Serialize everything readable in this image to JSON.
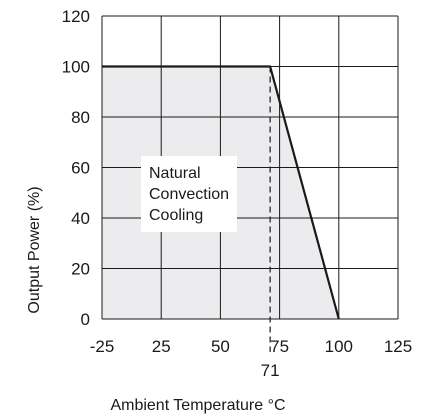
{
  "chart_data": {
    "type": "area",
    "title": "",
    "xlabel": "Ambient Temperature °C",
    "ylabel": "Output Power (%)",
    "xlim": [
      -25,
      125
    ],
    "ylim": [
      0,
      120
    ],
    "x_ticks": [
      -25,
      25,
      50,
      75,
      100,
      125
    ],
    "x_tick_labels": [
      "-25",
      "25",
      "50",
      "75",
      "100",
      "125"
    ],
    "y_ticks": [
      0,
      20,
      40,
      60,
      80,
      100,
      120
    ],
    "y_tick_labels": [
      "0",
      "20",
      "40",
      "60",
      "80",
      "100",
      "120"
    ],
    "grid": true,
    "series": [
      {
        "name": "Natural Convection Cooling",
        "x": [
          -25,
          71,
          100
        ],
        "y": [
          100,
          100,
          0
        ],
        "fill": "#ececee",
        "line_color": "#1a1a1a"
      }
    ],
    "annotations": [
      {
        "text": "71",
        "x": 71,
        "style": "dashed-vertical"
      }
    ],
    "region_label": [
      "Natural",
      "Convection",
      "Cooling"
    ]
  }
}
